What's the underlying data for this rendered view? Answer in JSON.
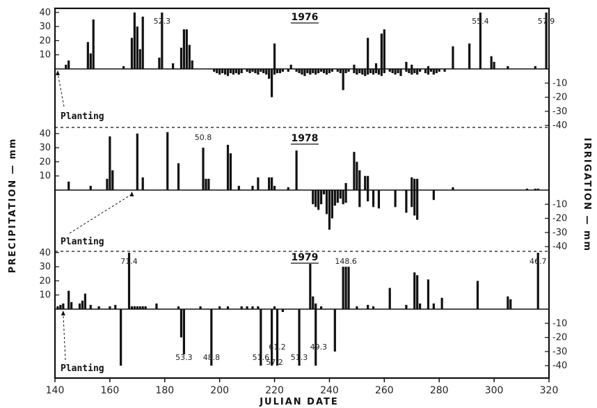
{
  "chart_data": {
    "type": "bar",
    "xlabel": "JULIAN DATE",
    "ylabel_left": "PRECIPITATION — mm",
    "ylabel_right": "IRRIGATION — mm",
    "xlim": [
      140,
      320
    ],
    "x_ticks": [
      "140",
      "160",
      "180",
      "200",
      "220",
      "240",
      "260",
      "280",
      "300",
      "320"
    ],
    "precip_ticks": [
      "10",
      "20",
      "30",
      "40"
    ],
    "irrig_ticks": [
      "10",
      "20",
      "30",
      "40"
    ],
    "planting_label": "Planting",
    "panels": [
      {
        "year": "1976",
        "planting_day": 141,
        "precipitation": [
          [
            144,
            3
          ],
          [
            145,
            6
          ],
          [
            152,
            19
          ],
          [
            153,
            11
          ],
          [
            154,
            35
          ],
          [
            165,
            2
          ],
          [
            168,
            22
          ],
          [
            169,
            40
          ],
          [
            170,
            30
          ],
          [
            171,
            14
          ],
          [
            172,
            37
          ],
          [
            178,
            8
          ],
          [
            179,
            42
          ],
          [
            183,
            4
          ],
          [
            186,
            15
          ],
          [
            187,
            28
          ],
          [
            188,
            28
          ],
          [
            189,
            17
          ],
          [
            190,
            6
          ],
          [
            220,
            18
          ],
          [
            226,
            3
          ],
          [
            249,
            3
          ],
          [
            254,
            22
          ],
          [
            257,
            4
          ],
          [
            259,
            25
          ],
          [
            260,
            28
          ],
          [
            268,
            5
          ],
          [
            270,
            3
          ],
          [
            276,
            2
          ],
          [
            285,
            16
          ],
          [
            291,
            18
          ],
          [
            295,
            42
          ],
          [
            299,
            9
          ],
          [
            300,
            5
          ],
          [
            305,
            2
          ],
          [
            315,
            2
          ],
          [
            319,
            42
          ]
        ],
        "precipitation_labels": [
          [
            179,
            "52.3"
          ],
          [
            295,
            "55.4"
          ],
          [
            319,
            "57.9"
          ]
        ],
        "irrigation": [
          [
            198,
            2
          ],
          [
            199,
            3
          ],
          [
            200,
            4
          ],
          [
            201,
            3
          ],
          [
            202,
            4
          ],
          [
            203,
            5
          ],
          [
            204,
            3
          ],
          [
            205,
            4
          ],
          [
            206,
            3
          ],
          [
            207,
            4
          ],
          [
            208,
            3
          ],
          [
            210,
            2
          ],
          [
            211,
            3
          ],
          [
            212,
            2
          ],
          [
            213,
            3
          ],
          [
            214,
            4
          ],
          [
            215,
            2
          ],
          [
            216,
            3
          ],
          [
            217,
            4
          ],
          [
            218,
            7
          ],
          [
            219,
            20
          ],
          [
            220,
            4
          ],
          [
            221,
            3
          ],
          [
            222,
            3
          ],
          [
            223,
            2
          ],
          [
            225,
            2
          ],
          [
            228,
            2
          ],
          [
            229,
            3
          ],
          [
            230,
            4
          ],
          [
            231,
            5
          ],
          [
            232,
            3
          ],
          [
            233,
            4
          ],
          [
            234,
            3
          ],
          [
            235,
            4
          ],
          [
            236,
            3
          ],
          [
            237,
            2
          ],
          [
            238,
            3
          ],
          [
            239,
            4
          ],
          [
            240,
            3
          ],
          [
            241,
            2
          ],
          [
            243,
            2
          ],
          [
            244,
            3
          ],
          [
            245,
            15
          ],
          [
            246,
            3
          ],
          [
            247,
            2
          ],
          [
            249,
            3
          ],
          [
            250,
            4
          ],
          [
            251,
            3
          ],
          [
            252,
            4
          ],
          [
            253,
            5
          ],
          [
            254,
            4
          ],
          [
            255,
            3
          ],
          [
            256,
            4
          ],
          [
            257,
            3
          ],
          [
            258,
            4
          ],
          [
            259,
            5
          ],
          [
            260,
            3
          ],
          [
            262,
            2
          ],
          [
            263,
            3
          ],
          [
            264,
            4
          ],
          [
            265,
            3
          ],
          [
            266,
            5
          ],
          [
            268,
            2
          ],
          [
            269,
            3
          ],
          [
            270,
            4
          ],
          [
            271,
            3
          ],
          [
            272,
            4
          ],
          [
            273,
            2
          ],
          [
            275,
            3
          ],
          [
            276,
            4
          ],
          [
            277,
            2
          ],
          [
            278,
            4
          ],
          [
            279,
            3
          ],
          [
            280,
            2
          ],
          [
            282,
            2
          ]
        ]
      },
      {
        "year": "1978",
        "planting_day": 168,
        "precipitation": [
          [
            145,
            6
          ],
          [
            153,
            3
          ],
          [
            159,
            8
          ],
          [
            160,
            38
          ],
          [
            161,
            14
          ],
          [
            170,
            40
          ],
          [
            172,
            9
          ],
          [
            181,
            41
          ],
          [
            185,
            19
          ],
          [
            194,
            30
          ],
          [
            195,
            8
          ],
          [
            196,
            8
          ],
          [
            203,
            32
          ],
          [
            204,
            26
          ],
          [
            207,
            3
          ],
          [
            212,
            3
          ],
          [
            214,
            9
          ],
          [
            218,
            9
          ],
          [
            219,
            9
          ],
          [
            220,
            3
          ],
          [
            225,
            2
          ],
          [
            228,
            28
          ],
          [
            246,
            5
          ],
          [
            249,
            27
          ],
          [
            250,
            20
          ],
          [
            251,
            14
          ],
          [
            253,
            10
          ],
          [
            254,
            10
          ],
          [
            270,
            9
          ],
          [
            271,
            8
          ],
          [
            272,
            8
          ],
          [
            285,
            2
          ],
          [
            312,
            1
          ],
          [
            315,
            1
          ],
          [
            316,
            1
          ]
        ],
        "precipitation_labels": [
          [
            194,
            "50.8"
          ]
        ],
        "irrigation": [
          [
            234,
            10
          ],
          [
            235,
            12
          ],
          [
            236,
            14
          ],
          [
            237,
            10
          ],
          [
            238,
            3
          ],
          [
            239,
            17
          ],
          [
            240,
            28
          ],
          [
            241,
            20
          ],
          [
            242,
            11
          ],
          [
            243,
            9
          ],
          [
            244,
            6
          ],
          [
            245,
            10
          ],
          [
            246,
            9
          ],
          [
            251,
            12
          ],
          [
            254,
            8
          ],
          [
            256,
            12
          ],
          [
            258,
            13
          ],
          [
            264,
            12
          ],
          [
            268,
            16
          ],
          [
            270,
            12
          ],
          [
            271,
            18
          ],
          [
            272,
            21
          ],
          [
            278,
            7
          ]
        ]
      },
      {
        "year": "1979",
        "planting_day": 143,
        "precipitation": [
          [
            141,
            2
          ],
          [
            142,
            3
          ],
          [
            143,
            4
          ],
          [
            145,
            13
          ],
          [
            146,
            5
          ],
          [
            149,
            4
          ],
          [
            150,
            6
          ],
          [
            151,
            11
          ],
          [
            153,
            3
          ],
          [
            156,
            2
          ],
          [
            160,
            2
          ],
          [
            162,
            3
          ],
          [
            167,
            42
          ],
          [
            168,
            2
          ],
          [
            169,
            2
          ],
          [
            170,
            2
          ],
          [
            171,
            2
          ],
          [
            172,
            2
          ],
          [
            173,
            2
          ],
          [
            177,
            4
          ],
          [
            185,
            2
          ],
          [
            193,
            2
          ],
          [
            200,
            2
          ],
          [
            203,
            2
          ],
          [
            208,
            2
          ],
          [
            210,
            2
          ],
          [
            212,
            2
          ],
          [
            214,
            2
          ],
          [
            220,
            2
          ],
          [
            233,
            32
          ],
          [
            234,
            9
          ],
          [
            235,
            4
          ],
          [
            237,
            2
          ],
          [
            245,
            30
          ],
          [
            246,
            30
          ],
          [
            247,
            30
          ],
          [
            250,
            2
          ],
          [
            254,
            3
          ],
          [
            256,
            2
          ],
          [
            262,
            15
          ],
          [
            268,
            3
          ],
          [
            271,
            26
          ],
          [
            272,
            24
          ],
          [
            273,
            4
          ],
          [
            276,
            21
          ],
          [
            278,
            4
          ],
          [
            281,
            8
          ],
          [
            294,
            20
          ],
          [
            305,
            9
          ],
          [
            306,
            7
          ],
          [
            316,
            40
          ]
        ],
        "precipitation_labels": [
          [
            167,
            "71.4"
          ],
          [
            246,
            "148.6"
          ],
          [
            316,
            "46.7"
          ]
        ],
        "irrigation": [
          [
            164,
            40
          ],
          [
            186,
            20
          ],
          [
            187,
            32
          ],
          [
            197,
            40
          ],
          [
            215,
            40
          ],
          [
            219,
            40
          ],
          [
            221,
            40
          ],
          [
            223,
            2
          ],
          [
            229,
            40
          ],
          [
            235,
            40
          ],
          [
            242,
            30
          ]
        ],
        "irrigation_labels": [
          [
            187,
            "53.3"
          ],
          [
            197,
            "48.8"
          ],
          [
            215,
            "51.6"
          ],
          [
            220,
            "57.2"
          ],
          [
            221,
            "61.2"
          ],
          [
            229,
            "51.3"
          ],
          [
            233,
            "49.3"
          ]
        ]
      }
    ]
  }
}
